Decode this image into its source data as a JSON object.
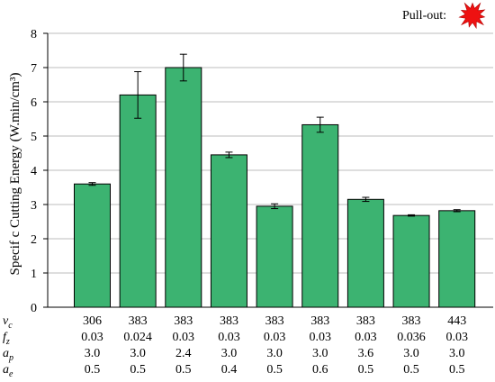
{
  "chart_data": {
    "type": "bar",
    "ylabel": "Specif c Cutting Energy (W.min/cm³)",
    "ylim": [
      0,
      8
    ],
    "yticks": [
      "0",
      "1",
      "2",
      "3",
      "4",
      "5",
      "6",
      "7",
      "8"
    ],
    "grid": true,
    "values": [
      3.6,
      6.2,
      7.0,
      4.45,
      2.95,
      5.33,
      3.15,
      2.68,
      2.82
    ],
    "errors": [
      0.04,
      0.68,
      0.39,
      0.08,
      0.07,
      0.22,
      0.06,
      0.02,
      0.03
    ],
    "parameters": [
      {
        "symbol": "v",
        "subscript": "c",
        "values": [
          "306",
          "383",
          "383",
          "383",
          "383",
          "383",
          "383",
          "383",
          "443"
        ]
      },
      {
        "symbol": "f",
        "subscript": "z",
        "values": [
          "0.03",
          "0.024",
          "0.03",
          "0.03",
          "0.03",
          "0.03",
          "0.03",
          "0.036",
          "0.03"
        ]
      },
      {
        "symbol": "a",
        "subscript": "p",
        "values": [
          "3.0",
          "3.0",
          "2.4",
          "3.0",
          "3.0",
          "3.0",
          "3.6",
          "3.0",
          "3.0"
        ]
      },
      {
        "symbol": "a",
        "subscript": "e",
        "values": [
          "0.5",
          "0.5",
          "0.5",
          "0.4",
          "0.5",
          "0.6",
          "0.5",
          "0.5",
          "0.5"
        ]
      }
    ],
    "legend": {
      "label": "Pull-out:",
      "icon": "red-starburst-icon",
      "position": "top-right"
    },
    "colors": {
      "bar": "#3cb371",
      "bar_stroke": "#000000",
      "grid": "#bdbdbd",
      "legend_icon": "#ee1111"
    }
  }
}
